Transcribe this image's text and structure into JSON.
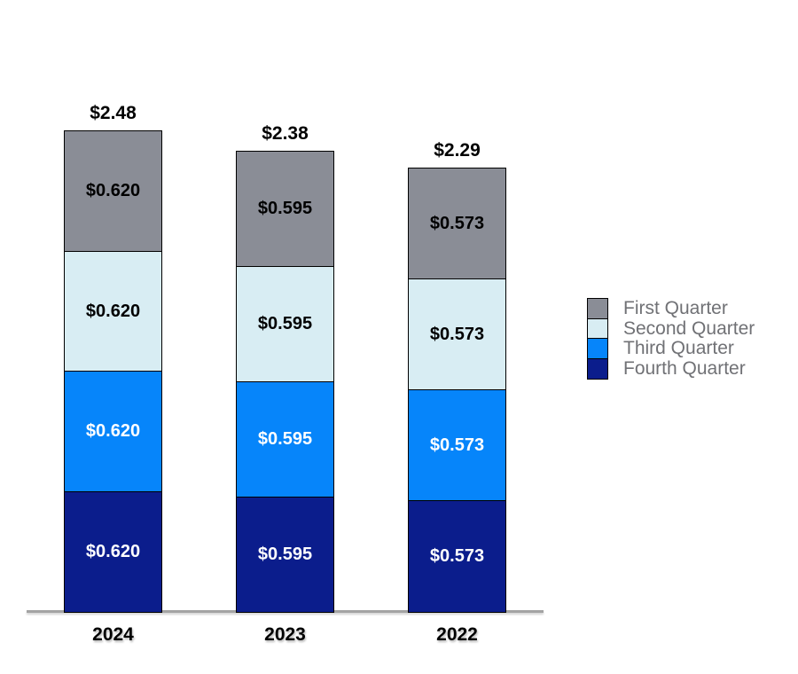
{
  "chart_data": {
    "type": "bar",
    "stacked": true,
    "title": "",
    "xlabel": "",
    "ylabel": "",
    "categories": [
      "2024",
      "2023",
      "2022"
    ],
    "series": [
      {
        "name": "First Quarter",
        "values": [
          0.62,
          0.595,
          0.573
        ],
        "labels": [
          "$0.620",
          "$0.595",
          "$0.573"
        ],
        "color": "#8A8D96",
        "text_color": "#000000"
      },
      {
        "name": "Second Quarter",
        "values": [
          0.62,
          0.595,
          0.573
        ],
        "labels": [
          "$0.620",
          "$0.595",
          "$0.573"
        ],
        "color": "#D8EDF3",
        "text_color": "#000000"
      },
      {
        "name": "Third Quarter",
        "values": [
          0.62,
          0.595,
          0.573
        ],
        "labels": [
          "$0.620",
          "$0.595",
          "$0.573"
        ],
        "color": "#0685FA",
        "text_color": "#FFFFFF"
      },
      {
        "name": "Fourth Quarter",
        "values": [
          0.62,
          0.595,
          0.573
        ],
        "labels": [
          "$0.620",
          "$0.595",
          "$0.573"
        ],
        "color": "#0B1D8C",
        "text_color": "#FFFFFF"
      }
    ],
    "totals": [
      2.48,
      2.38,
      2.29
    ],
    "total_labels": [
      "$2.48",
      "$2.38",
      "$2.29"
    ],
    "ylim": [
      0,
      2.6
    ],
    "grid": false,
    "legend_position": "right",
    "axis_line_color": "#A3A3A3",
    "background": "#FFFFFF"
  },
  "legend": {
    "items": [
      {
        "label": "First Quarter",
        "color": "#8A8D96"
      },
      {
        "label": "Second Quarter",
        "color": "#D8EDF3"
      },
      {
        "label": "Third Quarter",
        "color": "#0685FA"
      },
      {
        "label": "Fourth Quarter",
        "color": "#0B1D8C"
      }
    ],
    "text_color": "#707175"
  }
}
